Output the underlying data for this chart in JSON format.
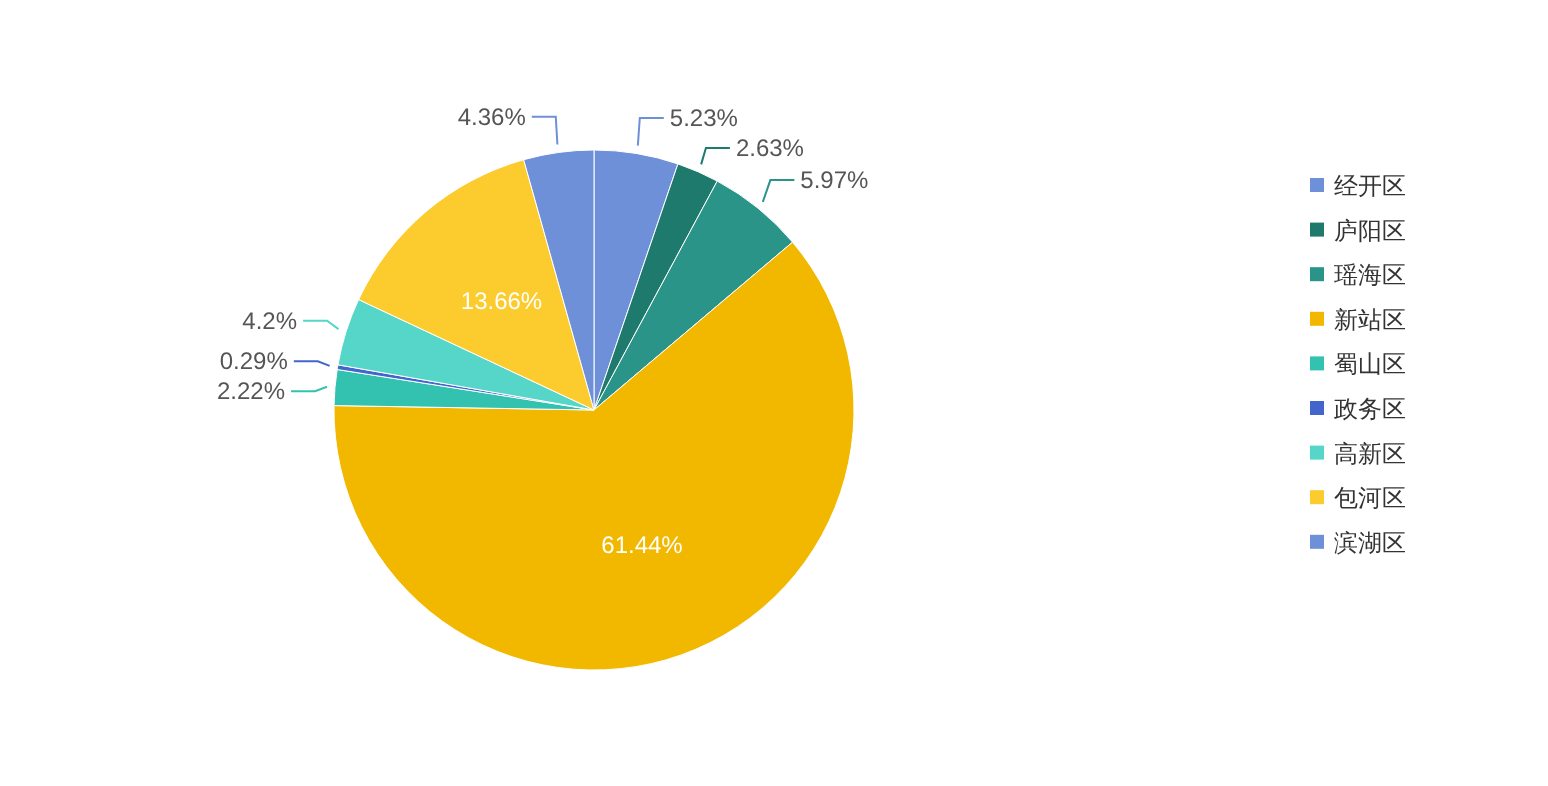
{
  "chart_data": {
    "type": "pie",
    "categories": [
      "经开区",
      "庐阳区",
      "瑶海区",
      "新站区",
      "蜀山区",
      "政务区",
      "高新区",
      "包河区",
      "滨湖区"
    ],
    "values": [
      5.23,
      2.63,
      5.97,
      61.44,
      2.22,
      0.29,
      4.2,
      13.66,
      4.36
    ],
    "colors": [
      "#6d90d8",
      "#1f7a6e",
      "#2a9488",
      "#f2b800",
      "#33c2b0",
      "#4466cc",
      "#55d6c8",
      "#fccc2e",
      "#6d90d8"
    ],
    "value_labels": [
      "5.23%",
      "2.63%",
      "5.97%",
      "61.44%",
      "2.22%",
      "0.29%",
      "4.2%",
      "13.66%",
      "4.36%"
    ],
    "legend": "right"
  }
}
